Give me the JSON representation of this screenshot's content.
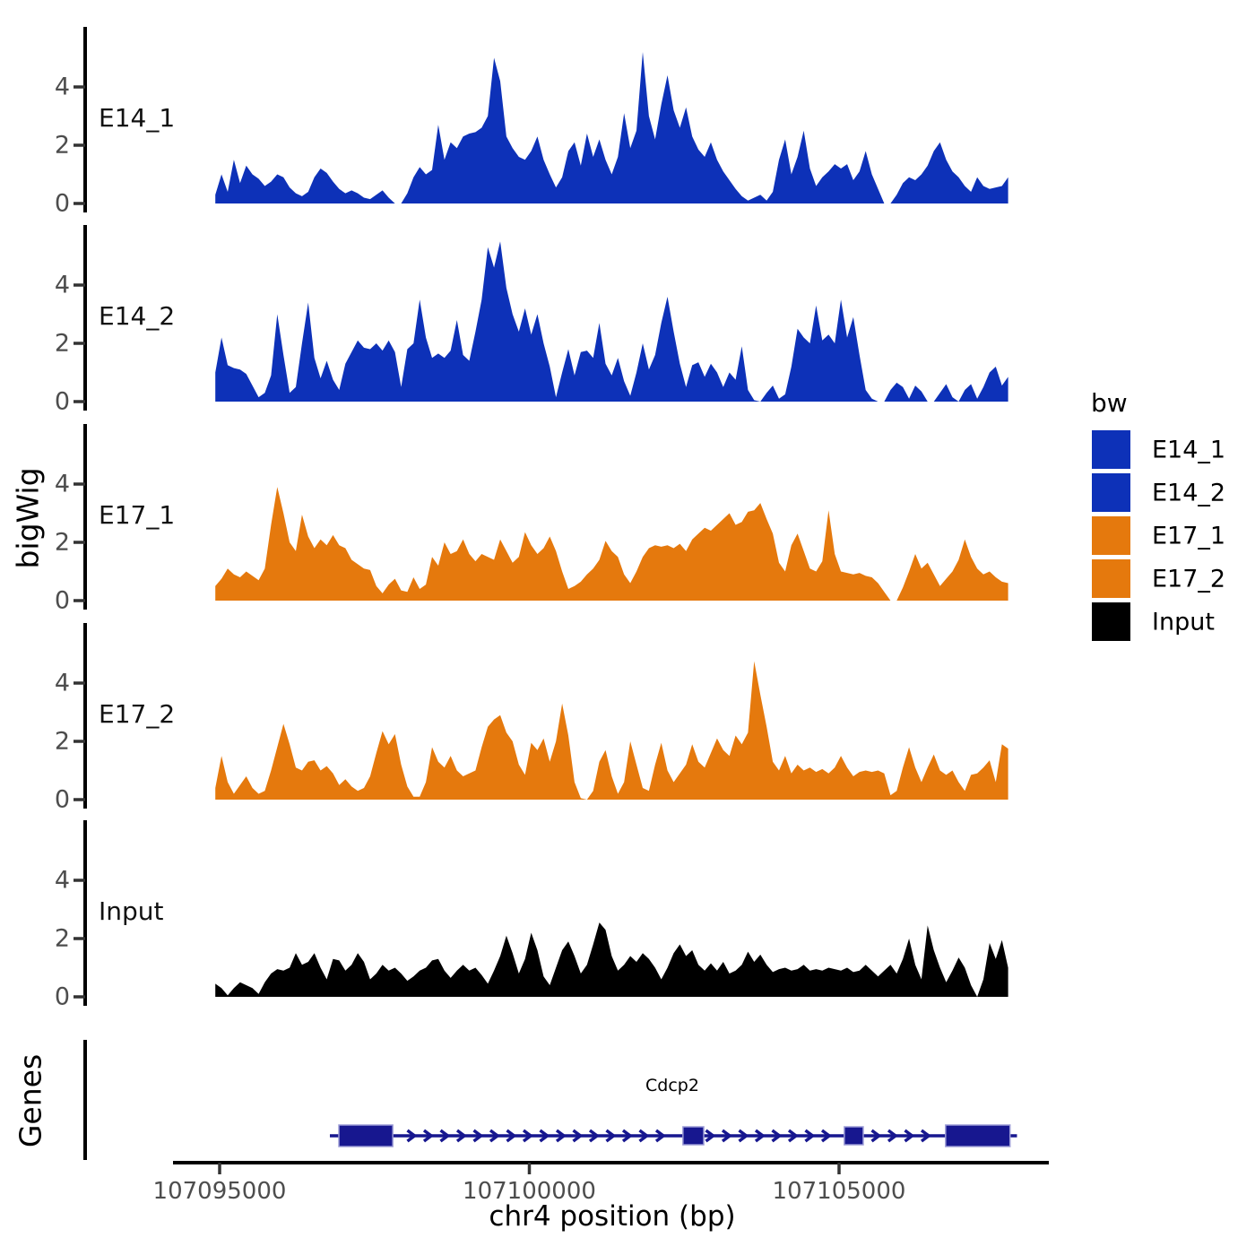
{
  "y_axis": {
    "label": "bigWig",
    "tick_labels": [
      "0",
      "2",
      "4"
    ],
    "tick_values": [
      0,
      2,
      4
    ]
  },
  "x_axis": {
    "title": "chr4 position (bp)",
    "ticks": [
      {
        "value": 107095000,
        "label": "107095000"
      },
      {
        "value": 107100000,
        "label": "107100000"
      },
      {
        "value": 107105000,
        "label": "107105000"
      }
    ],
    "range_bp": [
      107094250,
      107108390
    ]
  },
  "genes": {
    "label": "Genes"
  },
  "legend": {
    "title": "bw",
    "entries": [
      {
        "label": "E14_1",
        "color": "#0D31B8"
      },
      {
        "label": "E14_2",
        "color": "#0D31B8"
      },
      {
        "label": "E17_1",
        "color": "#E5790D"
      },
      {
        "label": "E17_2",
        "color": "#E5790D"
      },
      {
        "label": "Input",
        "color": "#000000"
      }
    ]
  },
  "gene_track": {
    "gene_name": "Cdcp2",
    "strand": "+",
    "gene_color": "#17178F",
    "exon_border_color": "#9b9bd6",
    "gene_start_bp": 107096780,
    "gene_end_bp": 107107800,
    "exons_bp": [
      [
        107096925,
        107097795
      ],
      [
        107102480,
        107102815
      ],
      [
        107105085,
        107105390
      ],
      [
        107106720,
        107107760
      ]
    ]
  },
  "chart_data": {
    "type": "area",
    "title": "",
    "xlabel": "chr4 position (bp)",
    "ylabel": "bigWig",
    "per_panel_ylim": [
      0,
      6.1
    ],
    "x_start_bp": 107094930,
    "x_step_bp": 100,
    "n_points": 129,
    "series": [
      {
        "name": "E14_1",
        "color": "#0D31B8",
        "values": [
          0.3,
          1.0,
          0.4,
          1.5,
          0.7,
          1.3,
          1.0,
          0.85,
          0.6,
          0.75,
          1.0,
          0.9,
          0.55,
          0.35,
          0.25,
          0.4,
          0.9,
          1.2,
          1.05,
          0.75,
          0.5,
          0.35,
          0.45,
          0.35,
          0.2,
          0.15,
          0.3,
          0.45,
          0.2,
          0,
          0,
          0.35,
          0.9,
          1.25,
          1.0,
          1.15,
          2.7,
          1.5,
          2.1,
          1.9,
          2.3,
          2.4,
          2.45,
          2.6,
          3.0,
          5.0,
          4.2,
          2.3,
          1.9,
          1.6,
          1.5,
          1.8,
          2.3,
          1.5,
          1.0,
          0.55,
          0.9,
          1.8,
          2.1,
          1.3,
          2.4,
          1.6,
          2.2,
          1.5,
          1.0,
          1.6,
          3.1,
          1.9,
          2.5,
          5.2,
          3.0,
          2.2,
          3.4,
          4.4,
          3.2,
          2.6,
          3.3,
          2.3,
          1.85,
          1.6,
          2.1,
          1.5,
          1.1,
          0.8,
          0.5,
          0.25,
          0.1,
          0.2,
          0.3,
          0.1,
          0.4,
          1.5,
          2.2,
          1.0,
          1.6,
          2.5,
          1.2,
          0.6,
          0.9,
          1.1,
          1.35,
          1.2,
          1.35,
          0.8,
          1.1,
          1.8,
          1.0,
          0.5,
          0,
          0,
          0.3,
          0.7,
          0.9,
          0.8,
          1.0,
          1.3,
          1.8,
          2.1,
          1.5,
          1.1,
          0.9,
          0.6,
          0.4,
          0.9,
          0.6,
          0.5,
          0.55,
          0.6,
          0.9
        ]
      },
      {
        "name": "E14_2",
        "color": "#0D31B8",
        "values": [
          1.0,
          2.2,
          1.25,
          1.15,
          1.1,
          0.95,
          0.55,
          0.15,
          0.3,
          0.9,
          3.0,
          1.6,
          0.3,
          0.5,
          2.0,
          3.4,
          1.5,
          0.8,
          1.4,
          0.75,
          0.4,
          1.3,
          1.7,
          2.1,
          1.85,
          1.8,
          2.0,
          1.75,
          2.1,
          1.7,
          0.5,
          1.8,
          2.0,
          3.5,
          2.2,
          1.5,
          1.65,
          1.5,
          1.75,
          2.8,
          1.6,
          1.4,
          2.4,
          3.5,
          5.3,
          4.6,
          5.5,
          3.9,
          3.0,
          2.4,
          3.2,
          2.3,
          3.0,
          2.0,
          1.2,
          0.15,
          1.0,
          1.8,
          0.9,
          1.7,
          1.75,
          1.5,
          2.7,
          1.3,
          0.9,
          1.5,
          0.7,
          0.2,
          1.0,
          2.0,
          1.1,
          1.6,
          2.7,
          3.6,
          2.4,
          1.3,
          0.5,
          1.25,
          1.35,
          0.85,
          1.3,
          1.0,
          0.5,
          1.0,
          0.75,
          1.9,
          0.4,
          0.05,
          0,
          0.3,
          0.55,
          0.1,
          0.25,
          1.2,
          2.5,
          2.2,
          2.0,
          3.3,
          2.1,
          2.3,
          2.0,
          3.5,
          2.2,
          2.9,
          1.6,
          0.4,
          0.1,
          0,
          0,
          0.4,
          0.65,
          0.5,
          0.1,
          0.55,
          0.35,
          0,
          0,
          0.3,
          0.6,
          0.15,
          0,
          0.4,
          0.6,
          0.1,
          0.5,
          1.0,
          1.2,
          0.55,
          0.85
        ]
      },
      {
        "name": "E17_1",
        "color": "#E5790D",
        "values": [
          0.5,
          0.75,
          1.1,
          0.9,
          0.8,
          1.0,
          0.85,
          0.7,
          1.1,
          2.6,
          3.9,
          3.0,
          2.0,
          1.7,
          2.95,
          2.2,
          1.8,
          2.1,
          1.9,
          2.25,
          1.9,
          1.8,
          1.4,
          1.25,
          1.1,
          1.05,
          0.5,
          0.25,
          0.55,
          0.75,
          0.35,
          0.3,
          0.8,
          0.4,
          0.55,
          1.5,
          1.2,
          2.0,
          1.6,
          1.7,
          2.1,
          1.6,
          1.35,
          1.6,
          1.5,
          1.4,
          2.1,
          1.7,
          1.3,
          1.5,
          2.35,
          1.9,
          1.6,
          1.8,
          2.2,
          1.7,
          1.0,
          0.4,
          0.5,
          0.65,
          0.9,
          1.1,
          1.4,
          2.05,
          1.7,
          1.5,
          0.9,
          0.6,
          1.0,
          1.5,
          1.8,
          1.9,
          1.85,
          1.9,
          1.8,
          1.95,
          1.7,
          2.1,
          2.3,
          2.5,
          2.4,
          2.6,
          2.8,
          3.0,
          2.6,
          2.7,
          3.05,
          3.1,
          3.35,
          2.8,
          2.3,
          1.3,
          1.0,
          1.9,
          2.3,
          1.7,
          1.1,
          1.0,
          1.35,
          3.1,
          1.6,
          1.0,
          0.95,
          0.9,
          0.95,
          0.85,
          0.8,
          0.6,
          0.3,
          0,
          0,
          0.45,
          1.0,
          1.6,
          1.1,
          1.3,
          0.9,
          0.5,
          0.75,
          1.0,
          1.4,
          2.1,
          1.5,
          1.1,
          0.9,
          1.0,
          0.8,
          0.65,
          0.6
        ]
      },
      {
        "name": "E17_2",
        "color": "#E5790D",
        "values": [
          0.4,
          1.5,
          0.6,
          0.2,
          0.5,
          0.8,
          0.4,
          0.2,
          0.3,
          1.0,
          1.8,
          2.6,
          1.9,
          1.1,
          1.0,
          1.3,
          1.35,
          1.0,
          1.15,
          0.9,
          0.5,
          0.7,
          0.45,
          0.3,
          0.4,
          0.8,
          1.6,
          2.35,
          1.9,
          2.25,
          1.2,
          0.45,
          0.1,
          0.1,
          0.6,
          1.8,
          1.3,
          1.1,
          1.5,
          1.0,
          0.8,
          0.9,
          1.0,
          1.8,
          2.5,
          2.75,
          2.9,
          2.3,
          2.0,
          1.2,
          0.85,
          1.95,
          1.7,
          2.1,
          1.3,
          2.0,
          3.3,
          2.2,
          0.6,
          0.05,
          0,
          0.3,
          1.3,
          1.7,
          0.8,
          0.2,
          0.6,
          2.0,
          1.2,
          0.4,
          0.3,
          1.2,
          1.95,
          1.0,
          0.6,
          0.9,
          1.2,
          1.9,
          1.3,
          1.1,
          1.6,
          2.1,
          1.7,
          1.5,
          2.2,
          1.9,
          2.3,
          4.75,
          3.6,
          2.5,
          1.3,
          1.0,
          1.5,
          0.9,
          1.2,
          1.0,
          1.1,
          0.95,
          1.05,
          0.9,
          1.1,
          1.5,
          1.1,
          0.8,
          0.95,
          1.0,
          0.95,
          1.0,
          0.9,
          0.15,
          0.3,
          1.1,
          1.8,
          1.1,
          0.6,
          1.1,
          1.55,
          1.0,
          0.85,
          1.0,
          0.6,
          0.3,
          0.85,
          0.9,
          1.1,
          1.35,
          0.6,
          1.9,
          1.75
        ]
      },
      {
        "name": "Input",
        "color": "#000000",
        "values": [
          0.45,
          0.3,
          0.05,
          0.3,
          0.5,
          0.4,
          0.3,
          0.1,
          0.5,
          0.8,
          0.95,
          0.9,
          1.0,
          1.5,
          1.1,
          1.2,
          1.5,
          1.0,
          0.6,
          1.3,
          1.25,
          0.9,
          1.1,
          1.5,
          1.2,
          0.6,
          0.8,
          1.1,
          0.9,
          1.0,
          0.8,
          0.55,
          0.7,
          0.9,
          1.0,
          1.25,
          1.3,
          0.9,
          0.65,
          0.9,
          1.1,
          0.9,
          1.0,
          0.75,
          0.45,
          0.9,
          1.4,
          2.1,
          1.5,
          0.8,
          1.3,
          2.2,
          1.6,
          0.7,
          0.4,
          1.0,
          1.6,
          1.9,
          1.4,
          0.8,
          1.1,
          1.8,
          2.55,
          2.3,
          1.4,
          0.9,
          1.1,
          1.4,
          1.2,
          1.5,
          1.3,
          1.0,
          0.6,
          1.0,
          1.5,
          1.8,
          1.4,
          1.6,
          1.1,
          0.9,
          1.15,
          0.9,
          1.2,
          0.8,
          0.9,
          1.1,
          1.55,
          1.2,
          1.45,
          1.1,
          0.85,
          0.95,
          1.0,
          0.9,
          0.95,
          1.1,
          0.9,
          0.95,
          0.9,
          1.0,
          0.95,
          0.9,
          1.0,
          0.85,
          0.9,
          1.1,
          0.9,
          0.7,
          0.9,
          1.1,
          0.8,
          1.3,
          2.0,
          1.1,
          0.6,
          2.45,
          1.6,
          1.0,
          0.5,
          0.9,
          1.35,
          1.0,
          0.4,
          0,
          0.6,
          1.85,
          1.3,
          1.95,
          1.0
        ]
      }
    ]
  }
}
